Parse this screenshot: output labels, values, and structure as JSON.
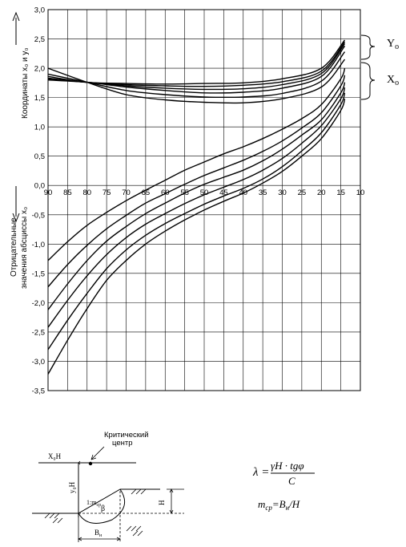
{
  "chart_data": {
    "type": "line",
    "ylabel": "Координаты x₀ и y₀",
    "ylabel_negative_line1": "Отрицательные",
    "ylabel_negative_line2": "значения абсциссы x₀",
    "xlim": [
      90,
      10
    ],
    "ylim": [
      -3.5,
      3.0
    ],
    "x_ticks": [
      "90",
      "85",
      "80",
      "75",
      "70",
      "65",
      "60",
      "55",
      "50",
      "45",
      "40",
      "35",
      "30",
      "25",
      "20",
      "15",
      "10"
    ],
    "y_ticks": [
      "3,0",
      "2,5",
      "2,0",
      "1,5",
      "1,0",
      "0,5",
      "0,0",
      "-0,5",
      "-1,0",
      "-1,5",
      "-2,0",
      "-2,5",
      "-3,0",
      "-3,5"
    ],
    "grid": true,
    "series_groups": [
      {
        "label": "Yo",
        "series": [
          {
            "x": [
              90,
              80,
              70,
              60,
              50,
              40,
              30,
              20,
              14
            ],
            "y": [
              1.86,
              1.76,
              1.74,
              1.73,
              1.74,
              1.75,
              1.82,
              2.0,
              2.48
            ]
          },
          {
            "x": [
              90,
              80,
              70,
              60,
              50,
              40,
              30,
              20,
              14
            ],
            "y": [
              1.83,
              1.76,
              1.72,
              1.7,
              1.69,
              1.71,
              1.77,
              1.95,
              2.45
            ]
          },
          {
            "x": [
              90,
              80,
              70,
              60,
              50,
              40,
              30,
              20,
              14
            ],
            "y": [
              1.81,
              1.76,
              1.7,
              1.66,
              1.64,
              1.65,
              1.72,
              1.91,
              2.42
            ]
          }
        ]
      },
      {
        "label": "Xo",
        "series": [
          {
            "x": [
              90,
              80,
              70,
              60,
              50,
              40,
              30,
              20,
              14
            ],
            "y": [
              1.8,
              1.76,
              1.68,
              1.62,
              1.58,
              1.59,
              1.66,
              1.86,
              2.38
            ]
          },
          {
            "x": [
              90,
              80,
              70,
              60,
              50,
              40,
              30,
              20,
              14
            ],
            "y": [
              1.9,
              1.76,
              1.62,
              1.55,
              1.51,
              1.51,
              1.57,
              1.78,
              2.28
            ]
          },
          {
            "x": [
              90,
              80,
              70,
              60,
              50,
              40,
              30,
              20,
              14
            ],
            "y": [
              2.0,
              1.76,
              1.55,
              1.46,
              1.42,
              1.41,
              1.48,
              1.68,
              2.15
            ]
          }
        ]
      },
      {
        "label": "",
        "series": [
          {
            "x": [
              90,
              85,
              80,
              75,
              70,
              65,
              60,
              55,
              50,
              45,
              40,
              35,
              30,
              25,
              20,
              15,
              14
            ],
            "y": [
              -1.28,
              -0.96,
              -0.68,
              -0.46,
              -0.26,
              -0.08,
              0.09,
              0.26,
              0.4,
              0.54,
              0.66,
              0.8,
              0.96,
              1.14,
              1.38,
              1.82,
              2.0
            ]
          },
          {
            "x": [
              90,
              85,
              80,
              75,
              70,
              65,
              60,
              55,
              50,
              45,
              40,
              35,
              30,
              25,
              20,
              15,
              14
            ],
            "y": [
              -1.73,
              -1.35,
              -1.02,
              -0.74,
              -0.51,
              -0.3,
              -0.14,
              0.02,
              0.17,
              0.3,
              0.43,
              0.58,
              0.76,
              0.98,
              1.24,
              1.7,
              1.88
            ]
          },
          {
            "x": [
              90,
              85,
              80,
              75,
              70,
              65,
              60,
              55,
              50,
              45,
              40,
              35,
              30,
              25,
              20,
              15,
              14
            ],
            "y": [
              -2.12,
              -1.68,
              -1.28,
              -0.95,
              -0.7,
              -0.48,
              -0.3,
              -0.13,
              0.02,
              0.14,
              0.26,
              0.42,
              0.62,
              0.86,
              1.12,
              1.58,
              1.76
            ]
          },
          {
            "x": [
              90,
              85,
              80,
              75,
              70,
              65,
              60,
              55,
              50,
              45,
              40,
              35,
              30,
              25,
              20,
              15,
              14
            ],
            "y": [
              -2.42,
              -1.96,
              -1.54,
              -1.18,
              -0.89,
              -0.66,
              -0.48,
              -0.31,
              -0.16,
              -0.03,
              0.1,
              0.26,
              0.46,
              0.72,
              1.02,
              1.48,
              1.67
            ]
          },
          {
            "x": [
              90,
              85,
              80,
              75,
              70,
              65,
              60,
              55,
              50,
              45,
              40,
              35,
              30,
              25,
              20,
              15,
              14
            ],
            "y": [
              -2.8,
              -2.3,
              -1.84,
              -1.42,
              -1.1,
              -0.85,
              -0.65,
              -0.48,
              -0.32,
              -0.18,
              -0.05,
              0.11,
              0.32,
              0.59,
              0.9,
              1.38,
              1.58
            ]
          },
          {
            "x": [
              90,
              85,
              80,
              75,
              70,
              65,
              60,
              55,
              50,
              45,
              40,
              35,
              30,
              25,
              20,
              15,
              14
            ],
            "y": [
              -3.22,
              -2.64,
              -2.1,
              -1.62,
              -1.28,
              -1.0,
              -0.78,
              -0.59,
              -0.42,
              -0.27,
              -0.13,
              0.04,
              0.24,
              0.5,
              0.8,
              1.28,
              1.48
            ]
          }
        ]
      }
    ]
  },
  "brace_labels": {
    "yo_main": "Y",
    "yo_sub": "o",
    "xo_main": "X",
    "xo_sub": "o"
  },
  "sketch": {
    "title_line1": "Критический",
    "title_line2": "центр",
    "xo_h": "X₀H",
    "yo_h": "y₀H",
    "slope_label": "1:m",
    "slope_sub": "ср",
    "beta": "β",
    "h_label": "H",
    "b_label": "B",
    "b_sub": "н"
  },
  "formulas": {
    "lambda_lhs": "λ =",
    "lambda_num": "γH · tgφ",
    "lambda_den": "C",
    "m_formula": "m",
    "m_sub": "ср",
    "m_rhs": "=B",
    "m_rhs_sub": "н",
    "m_tail": "/H"
  }
}
